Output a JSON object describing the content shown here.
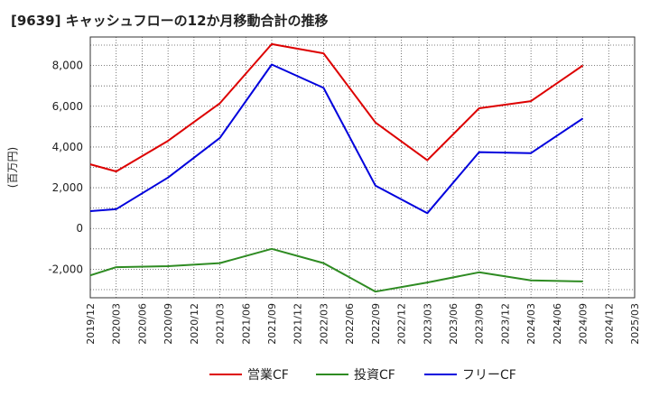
{
  "chart_data": {
    "type": "line",
    "title": "[9639]  キャッシュフローの12か月移動合計の推移",
    "ylabel": "(百万円)",
    "xlabel": "",
    "ylim": [
      -3400,
      9400
    ],
    "yticks": [
      -2000,
      0,
      2000,
      4000,
      6000,
      8000
    ],
    "ytick_labels": [
      "-2,000",
      "0",
      "2,000",
      "4,000",
      "6,000",
      "8,000"
    ],
    "categories": [
      "2019/12",
      "2020/03",
      "2020/06",
      "2020/09",
      "2020/12",
      "2021/03",
      "2021/06",
      "2021/09",
      "2021/12",
      "2022/03",
      "2022/06",
      "2022/09",
      "2022/12",
      "2023/03",
      "2023/06",
      "2023/09",
      "2023/12",
      "2024/03",
      "2024/06",
      "2024/09",
      "2024/12",
      "2025/03"
    ],
    "series": [
      {
        "name": "営業CF",
        "color": "#dd0000",
        "values": [
          3150,
          2800,
          null,
          4300,
          null,
          6150,
          null,
          9050,
          null,
          8600,
          null,
          5200,
          null,
          3350,
          null,
          5900,
          null,
          6250,
          null,
          8000,
          null,
          null
        ]
      },
      {
        "name": "投資CF",
        "color": "#2e8b22",
        "values": [
          -2300,
          -1900,
          null,
          -1850,
          null,
          -1700,
          null,
          -1000,
          null,
          -1700,
          null,
          -3100,
          null,
          -2650,
          null,
          -2150,
          null,
          -2550,
          null,
          -2600,
          null,
          null
        ]
      },
      {
        "name": "フリーCF",
        "color": "#0000dd",
        "values": [
          850,
          950,
          null,
          2500,
          null,
          4450,
          null,
          8050,
          null,
          6900,
          null,
          2100,
          null,
          750,
          null,
          3750,
          null,
          3700,
          null,
          5400,
          null,
          null
        ]
      }
    ],
    "grid": true,
    "legend_position": "bottom"
  }
}
